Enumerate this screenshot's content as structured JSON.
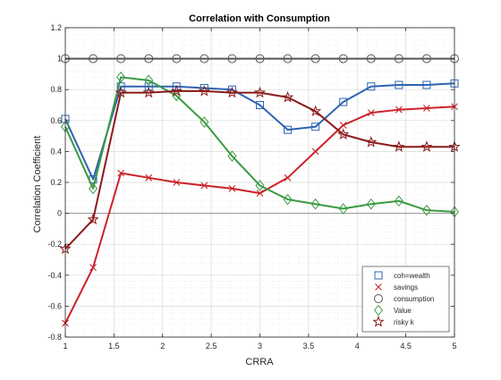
{
  "chart_data": {
    "type": "line",
    "title": "Correlation with Consumption",
    "xlabel": "CRRA",
    "ylabel": "Correlation Coefficient",
    "xlim": [
      1,
      5
    ],
    "ylim": [
      -0.8,
      1.2
    ],
    "xticks": [
      1,
      1.5,
      2,
      2.5,
      3,
      3.5,
      4,
      4.5,
      5
    ],
    "xtick_labels": [
      "1",
      "1.5",
      "2",
      "2.5",
      "3",
      "3.5",
      "4",
      "4.5",
      "5"
    ],
    "yticks": [
      -0.8,
      -0.6,
      -0.4,
      -0.2,
      0,
      0.2,
      0.4,
      0.6,
      0.8,
      1,
      1.2
    ],
    "ytick_labels": [
      "-0.8",
      "-0.6",
      "-0.4",
      "-0.2",
      "0",
      "0.2",
      "0.4",
      "0.6",
      "0.8",
      "1",
      "1.2"
    ],
    "grid": "minor dotted",
    "legend_position": "bottom-right",
    "x": [
      1,
      1.2857,
      1.5714,
      1.8571,
      2.1429,
      2.4286,
      2.7143,
      3,
      3.2857,
      3.5714,
      3.8571,
      4.1429,
      4.4286,
      4.7143,
      5
    ],
    "series": [
      {
        "name": "coh=wealth",
        "marker": "square",
        "color": "#2e64b0",
        "values": [
          0.61,
          0.22,
          0.82,
          0.82,
          0.82,
          0.81,
          0.8,
          0.7,
          0.54,
          0.56,
          0.72,
          0.82,
          0.83,
          0.83,
          0.84
        ]
      },
      {
        "name": "savings",
        "marker": "x",
        "color": "#cc2229",
        "values": [
          -0.71,
          -0.35,
          0.26,
          0.23,
          0.2,
          0.18,
          0.16,
          0.13,
          0.23,
          0.4,
          0.57,
          0.65,
          0.67,
          0.68,
          0.69
        ]
      },
      {
        "name": "consumption",
        "marker": "circle",
        "color": "#555555",
        "values": [
          1,
          1,
          1,
          1,
          1,
          1,
          1,
          1,
          1,
          1,
          1,
          1,
          1,
          1,
          1
        ]
      },
      {
        "name": "Value",
        "marker": "diamond",
        "color": "#3a9a42",
        "values": [
          0.56,
          0.16,
          0.88,
          0.86,
          0.76,
          0.59,
          0.37,
          0.18,
          0.09,
          0.06,
          0.03,
          0.06,
          0.08,
          0.02,
          0.01
        ]
      },
      {
        "name": "risky k",
        "marker": "star",
        "color": "#8b1a1a",
        "values": [
          -0.23,
          -0.04,
          0.78,
          0.78,
          0.79,
          0.79,
          0.78,
          0.78,
          0.75,
          0.66,
          0.51,
          0.46,
          0.43,
          0.43,
          0.43
        ]
      }
    ]
  }
}
